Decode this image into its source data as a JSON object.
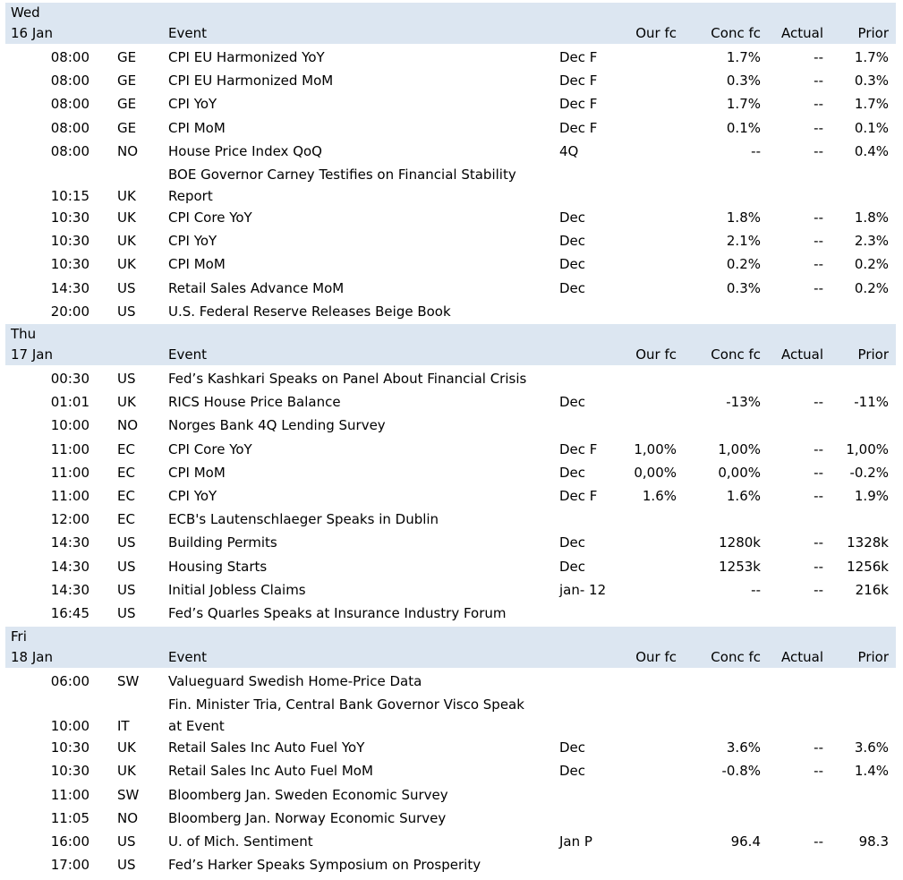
{
  "days": [
    {
      "weekday": "Wed",
      "date": "16 Jan",
      "headers": {
        "event": "Event",
        "our_fc": "Our fc",
        "conc_fc": "Conc fc",
        "actual": "Actual",
        "prior": "Prior"
      },
      "rows": [
        {
          "time": "08:00",
          "country": "GE",
          "event": [
            "CPI EU Harmonized YoY"
          ],
          "period": "Dec F",
          "our_fc": "",
          "conc_fc": "1.7%",
          "actual": "--",
          "prior": "1.7%"
        },
        {
          "time": "08:00",
          "country": "GE",
          "event": [
            "CPI EU Harmonized MoM"
          ],
          "period": "Dec F",
          "our_fc": "",
          "conc_fc": "0.3%",
          "actual": "--",
          "prior": "0.3%"
        },
        {
          "time": "08:00",
          "country": "GE",
          "event": [
            "CPI YoY"
          ],
          "period": "Dec F",
          "our_fc": "",
          "conc_fc": "1.7%",
          "actual": "--",
          "prior": "1.7%"
        },
        {
          "time": "08:00",
          "country": "GE",
          "event": [
            "CPI MoM"
          ],
          "period": "Dec F",
          "our_fc": "",
          "conc_fc": "0.1%",
          "actual": "--",
          "prior": "0.1%"
        },
        {
          "time": "08:00",
          "country": "NO",
          "event": [
            "House Price Index QoQ"
          ],
          "period": "4Q",
          "our_fc": "",
          "conc_fc": "--",
          "actual": "--",
          "prior": "0.4%"
        },
        {
          "time": "10:15",
          "country": "UK",
          "event": [
            "BOE Governor Carney Testifies on Financial Stability",
            "Report"
          ],
          "period": "",
          "our_fc": "",
          "conc_fc": "",
          "actual": "",
          "prior": ""
        },
        {
          "time": "10:30",
          "country": "UK",
          "event": [
            "CPI Core YoY"
          ],
          "period": "Dec",
          "our_fc": "",
          "conc_fc": "1.8%",
          "actual": "--",
          "prior": "1.8%"
        },
        {
          "time": "10:30",
          "country": "UK",
          "event": [
            "CPI YoY"
          ],
          "period": "Dec",
          "our_fc": "",
          "conc_fc": "2.1%",
          "actual": "--",
          "prior": "2.3%"
        },
        {
          "time": "10:30",
          "country": "UK",
          "event": [
            "CPI MoM"
          ],
          "period": "Dec",
          "our_fc": "",
          "conc_fc": "0.2%",
          "actual": "--",
          "prior": "0.2%"
        },
        {
          "time": "14:30",
          "country": "US",
          "event": [
            "Retail Sales Advance MoM"
          ],
          "period": "Dec",
          "our_fc": "",
          "conc_fc": "0.3%",
          "actual": "--",
          "prior": "0.2%"
        },
        {
          "time": "20:00",
          "country": "US",
          "event": [
            "U.S. Federal Reserve Releases Beige Book"
          ],
          "period": "",
          "our_fc": "",
          "conc_fc": "",
          "actual": "",
          "prior": ""
        }
      ]
    },
    {
      "weekday": "Thu",
      "date": "17 Jan",
      "headers": {
        "event": "Event",
        "our_fc": "Our fc",
        "conc_fc": "Conc fc",
        "actual": "Actual",
        "prior": "Prior"
      },
      "rows": [
        {
          "time": "00:30",
          "country": "US",
          "event": [
            "Fed’s Kashkari Speaks on Panel About Financial Crisis"
          ],
          "period": "",
          "our_fc": "",
          "conc_fc": "",
          "actual": "",
          "prior": ""
        },
        {
          "time": "01:01",
          "country": "UK",
          "event": [
            "RICS House Price Balance"
          ],
          "period": "Dec",
          "our_fc": "",
          "conc_fc": "-13%",
          "actual": "--",
          "prior": "-11%"
        },
        {
          "time": "10:00",
          "country": "NO",
          "event": [
            "Norges Bank 4Q Lending Survey"
          ],
          "period": "",
          "our_fc": "",
          "conc_fc": "",
          "actual": "",
          "prior": ""
        },
        {
          "time": "11:00",
          "country": "EC",
          "event": [
            "CPI Core YoY"
          ],
          "period": "Dec F",
          "our_fc": "1,00%",
          "conc_fc": "1,00%",
          "actual": "--",
          "prior": "1,00%"
        },
        {
          "time": "11:00",
          "country": "EC",
          "event": [
            "CPI MoM"
          ],
          "period": "Dec",
          "our_fc": "0,00%",
          "conc_fc": "0,00%",
          "actual": "--",
          "prior": "-0.2%"
        },
        {
          "time": "11:00",
          "country": "EC",
          "event": [
            "CPI YoY"
          ],
          "period": "Dec F",
          "our_fc": "1.6%",
          "conc_fc": "1.6%",
          "actual": "--",
          "prior": "1.9%"
        },
        {
          "time": "12:00",
          "country": "EC",
          "event": [
            "ECB's Lautenschlaeger Speaks in Dublin"
          ],
          "period": "",
          "our_fc": "",
          "conc_fc": "",
          "actual": "",
          "prior": ""
        },
        {
          "time": "14:30",
          "country": "US",
          "event": [
            "Building Permits"
          ],
          "period": "Dec",
          "our_fc": "",
          "conc_fc": "1280k",
          "actual": "--",
          "prior": "1328k"
        },
        {
          "time": "14:30",
          "country": "US",
          "event": [
            "Housing Starts"
          ],
          "period": "Dec",
          "our_fc": "",
          "conc_fc": "1253k",
          "actual": "--",
          "prior": "1256k"
        },
        {
          "time": "14:30",
          "country": "US",
          "event": [
            "Initial Jobless Claims"
          ],
          "period": "jan- 12",
          "our_fc": "",
          "conc_fc": "--",
          "actual": "--",
          "prior": "216k"
        },
        {
          "time": "16:45",
          "country": "US",
          "event": [
            "Fed’s Quarles Speaks at Insurance Industry Forum"
          ],
          "period": "",
          "our_fc": "",
          "conc_fc": "",
          "actual": "",
          "prior": ""
        }
      ]
    },
    {
      "weekday": "Fri",
      "date": "18 Jan",
      "headers": {
        "event": "Event",
        "our_fc": "Our fc",
        "conc_fc": "Conc fc",
        "actual": "Actual",
        "prior": "Prior"
      },
      "rows": [
        {
          "time": "06:00",
          "country": "SW",
          "event": [
            "Valueguard Swedish Home-Price Data"
          ],
          "period": "",
          "our_fc": "",
          "conc_fc": "",
          "actual": "",
          "prior": ""
        },
        {
          "time": "10:00",
          "country": "IT",
          "event": [
            "Fin. Minister Tria, Central Bank Governor Visco Speak",
            "at Event"
          ],
          "period": "",
          "our_fc": "",
          "conc_fc": "",
          "actual": "",
          "prior": ""
        },
        {
          "time": "10:30",
          "country": "UK",
          "event": [
            "Retail Sales Inc Auto Fuel YoY"
          ],
          "period": "Dec",
          "our_fc": "",
          "conc_fc": "3.6%",
          "actual": "--",
          "prior": "3.6%"
        },
        {
          "time": "10:30",
          "country": "UK",
          "event": [
            "Retail Sales Inc Auto Fuel MoM"
          ],
          "period": "Dec",
          "our_fc": "",
          "conc_fc": "-0.8%",
          "actual": "--",
          "prior": "1.4%"
        },
        {
          "time": "11:00",
          "country": "SW",
          "event": [
            "Bloomberg Jan. Sweden Economic Survey"
          ],
          "period": "",
          "our_fc": "",
          "conc_fc": "",
          "actual": "",
          "prior": ""
        },
        {
          "time": "11:05",
          "country": "NO",
          "event": [
            "Bloomberg Jan. Norway Economic Survey"
          ],
          "period": "",
          "our_fc": "",
          "conc_fc": "",
          "actual": "",
          "prior": ""
        },
        {
          "time": "16:00",
          "country": "US",
          "event": [
            "U. of Mich. Sentiment"
          ],
          "period": "Jan P",
          "our_fc": "",
          "conc_fc": "96.4",
          "actual": "--",
          "prior": "98.3"
        },
        {
          "time": "17:00",
          "country": "US",
          "event": [
            "Fed’s Harker Speaks Symposium on Prosperity"
          ],
          "period": "",
          "our_fc": "",
          "conc_fc": "",
          "actual": "",
          "prior": ""
        }
      ]
    }
  ]
}
